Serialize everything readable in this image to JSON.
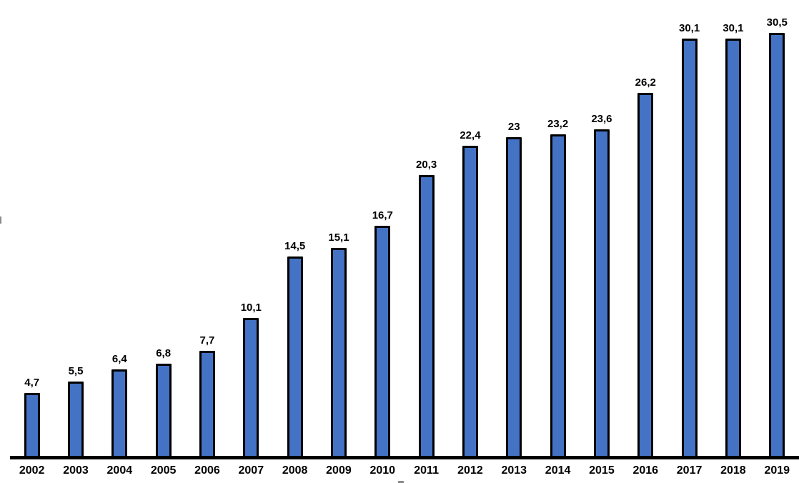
{
  "chart_data": {
    "type": "bar",
    "title": "",
    "xlabel": "",
    "ylabel": "",
    "categories": [
      "2002",
      "2003",
      "2004",
      "2005",
      "2006",
      "2007",
      "2008",
      "2009",
      "2010",
      "2011",
      "2012",
      "2013",
      "2014",
      "2015",
      "2016",
      "2017",
      "2018",
      "2019"
    ],
    "values": [
      4.7,
      5.5,
      6.4,
      6.8,
      7.7,
      10.1,
      14.5,
      15.1,
      16.7,
      20.3,
      22.4,
      23,
      23.2,
      23.6,
      26.2,
      30.1,
      30.1,
      30.5
    ],
    "value_labels": [
      "4,7",
      "5,5",
      "6,4",
      "6,8",
      "7,7",
      "10,1",
      "14,5",
      "15,1",
      "16,7",
      "20,3",
      "22,4",
      "23",
      "23,2",
      "23,6",
      "26,2",
      "30,1",
      "30,1",
      "30,5"
    ],
    "decimal_separator": ",",
    "ylim": [
      0,
      33
    ],
    "grid": false,
    "legend": false,
    "data_labels": true,
    "bar_color": "#4472c4",
    "bar_border_color": "#000000",
    "axis_line_color": "#000000",
    "label_color": "#000000"
  }
}
